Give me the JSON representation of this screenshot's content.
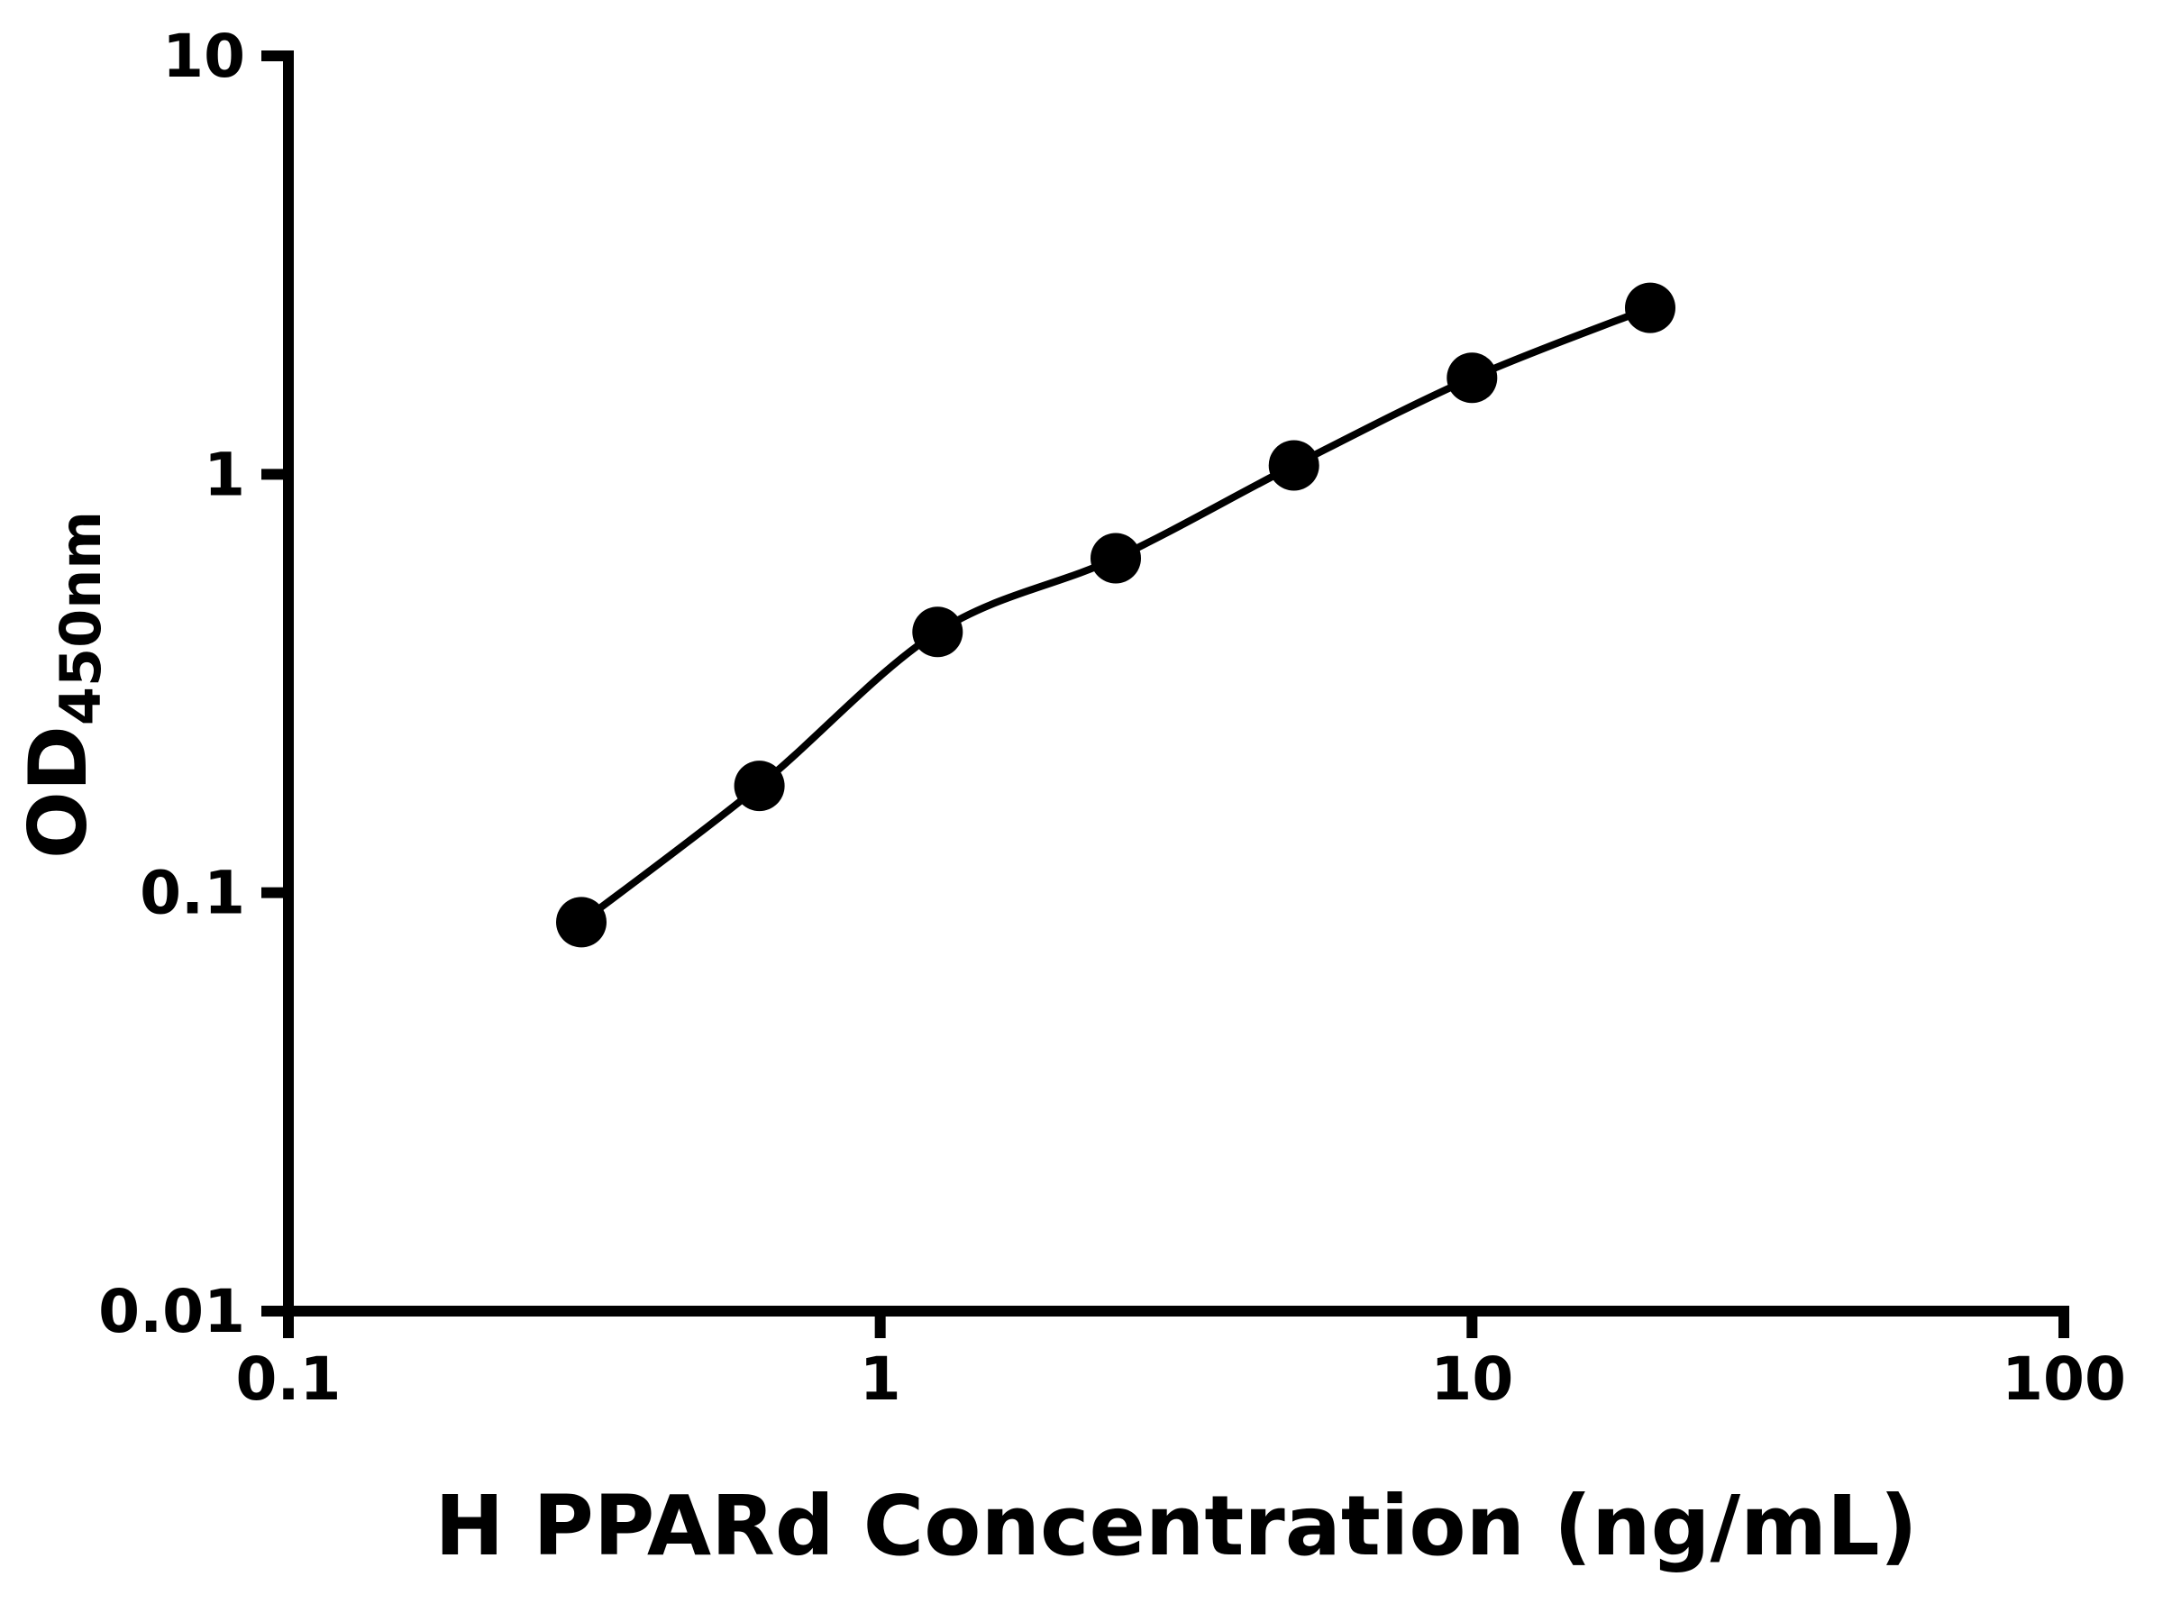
{
  "figure": {
    "background": "#ffffff",
    "axis_color": "#000000",
    "marker_color": "#000000",
    "line_color": "#000000"
  },
  "chart_data": {
    "type": "scatter",
    "subtype": "standard-curve-with-smooth-fit-line",
    "title": "",
    "xlabel": "H PPARd Concentration (ng/mL)",
    "ylabel_base": "OD",
    "ylabel_subscript": "450nm",
    "x_scale": "log",
    "y_scale": "log",
    "xlim": [
      0.1,
      100
    ],
    "ylim": [
      0.01,
      10
    ],
    "x_ticks": [
      0.1,
      1,
      10,
      100
    ],
    "x_tick_labels": [
      "0.1",
      "1",
      "10",
      "100"
    ],
    "y_ticks": [
      0.01,
      0.1,
      1,
      10
    ],
    "y_tick_labels": [
      "0.01",
      "0.1",
      "1",
      "10"
    ],
    "grid": false,
    "legend": "none",
    "x": [
      0.3125,
      0.625,
      1.25,
      2.5,
      5,
      10,
      20
    ],
    "y": [
      0.085,
      0.18,
      0.42,
      0.63,
      1.05,
      1.7,
      2.5
    ]
  }
}
